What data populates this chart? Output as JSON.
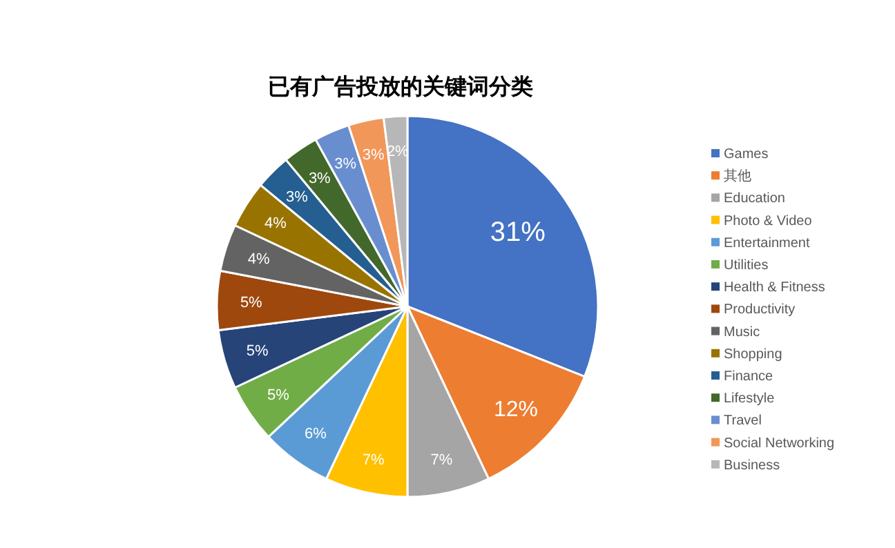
{
  "chart_data": {
    "type": "pie",
    "title": "已有广告投放的关键词分类",
    "categories": [
      "Games",
      "其他",
      "Education",
      "Photo & Video",
      "Entertainment",
      "Utilities",
      "Health & Fitness",
      "Productivity",
      "Music",
      "Shopping",
      "Finance",
      "Lifestyle",
      "Travel",
      "Social Networking",
      "Business"
    ],
    "values": [
      31,
      12,
      7,
      7,
      6,
      5,
      5,
      5,
      4,
      4,
      3,
      3,
      3,
      3,
      2
    ],
    "colors": [
      "#4472c4",
      "#ed7d31",
      "#a5a5a5",
      "#ffc000",
      "#5b9bd5",
      "#70ad47",
      "#264478",
      "#9e480e",
      "#636363",
      "#997300",
      "#255e91",
      "#43682b",
      "#698ed0",
      "#f1975a",
      "#b7b7b7"
    ],
    "value_labels": [
      "31%",
      "12%",
      "7%",
      "7%",
      "6%",
      "5%",
      "5%",
      "5%",
      "4%",
      "4%",
      "3%",
      "3%",
      "3%",
      "3%",
      "2%"
    ],
    "legend": "right"
  }
}
